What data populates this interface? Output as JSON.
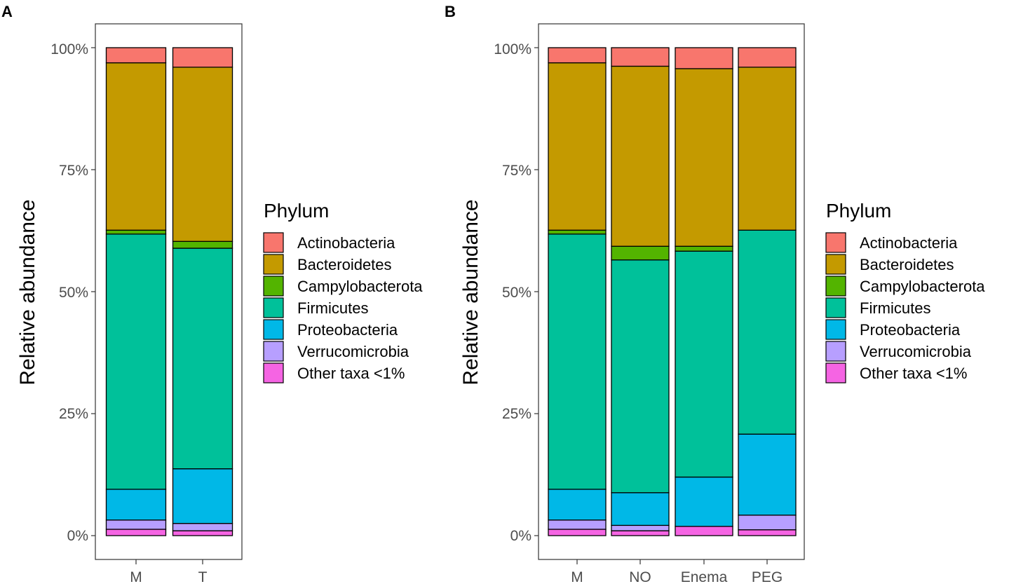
{
  "chart_data": [
    {
      "panel": "A",
      "type": "bar",
      "stacked": true,
      "categories": [
        "M",
        "T"
      ],
      "ylabel": "Relative abundance",
      "xlabel": "",
      "ylim": [
        0,
        1
      ],
      "yticks": [
        "0%",
        "25%",
        "50%",
        "75%",
        "100%"
      ],
      "legend_title": "Phylum",
      "series": [
        {
          "name": "Other taxa <1%",
          "color": "#F564E3",
          "values": [
            0.013,
            0.01
          ]
        },
        {
          "name": "Verrucomicrobia",
          "color": "#B79FFF",
          "values": [
            0.019,
            0.015
          ]
        },
        {
          "name": "Proteobacteria",
          "color": "#00B8E7",
          "values": [
            0.063,
            0.112
          ]
        },
        {
          "name": "Firmicutes",
          "color": "#00C19A",
          "values": [
            0.523,
            0.452
          ]
        },
        {
          "name": "Campylobacterota",
          "color": "#53B400",
          "values": [
            0.008,
            0.014
          ]
        },
        {
          "name": "Bacteroidetes",
          "color": "#C49A00",
          "values": [
            0.343,
            0.357
          ]
        },
        {
          "name": "Actinobacteria",
          "color": "#F8766D",
          "values": [
            0.031,
            0.04
          ]
        }
      ]
    },
    {
      "panel": "B",
      "type": "bar",
      "stacked": true,
      "categories": [
        "M",
        "NO",
        "Enema",
        "PEG"
      ],
      "ylabel": "Relative abundance",
      "xlabel": "",
      "ylim": [
        0,
        1
      ],
      "yticks": [
        "0%",
        "25%",
        "50%",
        "75%",
        "100%"
      ],
      "legend_title": "Phylum",
      "series": [
        {
          "name": "Other taxa <1%",
          "color": "#F564E3",
          "values": [
            0.013,
            0.01,
            0.019,
            0.012
          ]
        },
        {
          "name": "Verrucomicrobia",
          "color": "#B79FFF",
          "values": [
            0.019,
            0.011,
            0.0,
            0.03
          ]
        },
        {
          "name": "Proteobacteria",
          "color": "#00B8E7",
          "values": [
            0.063,
            0.067,
            0.101,
            0.166
          ]
        },
        {
          "name": "Firmicutes",
          "color": "#00C19A",
          "values": [
            0.523,
            0.477,
            0.463,
            0.418
          ]
        },
        {
          "name": "Campylobacterota",
          "color": "#53B400",
          "values": [
            0.008,
            0.028,
            0.01,
            0.0
          ]
        },
        {
          "name": "Bacteroidetes",
          "color": "#C49A00",
          "values": [
            0.343,
            0.369,
            0.364,
            0.334
          ]
        },
        {
          "name": "Actinobacteria",
          "color": "#F8766D",
          "values": [
            0.031,
            0.038,
            0.043,
            0.04
          ]
        }
      ]
    }
  ]
}
